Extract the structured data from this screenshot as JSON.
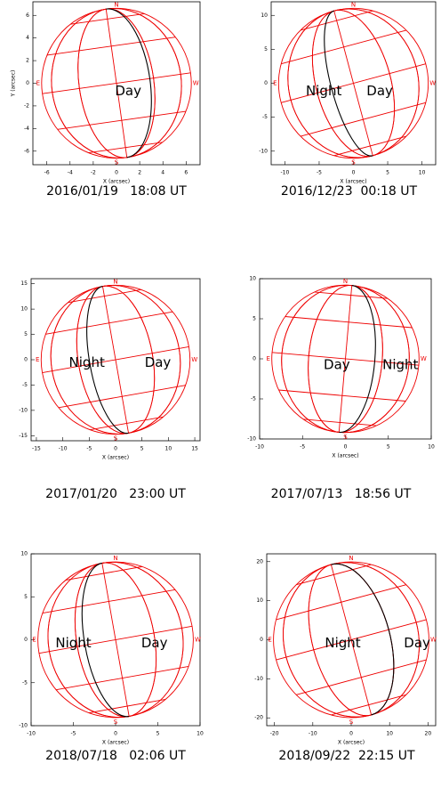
{
  "panels": [
    {
      "caption": "2016/01/19   18:08 UT",
      "xlim": [
        -7.2,
        7.2
      ],
      "xticks": [
        -6,
        -4,
        -2,
        0,
        2,
        4,
        6
      ],
      "ylim": [
        -7.2,
        7.2
      ],
      "yticks": [
        -6,
        -4,
        -2,
        0,
        2,
        4,
        6
      ],
      "xlabel": "X (arcsec)",
      "ylabel": "Y (arcsec)",
      "labels": [
        "Day"
      ],
      "poles": [
        "N",
        "S",
        "E",
        "W"
      ]
    },
    {
      "caption": "2016/12/23  00:18 UT",
      "xlim": [
        -12,
        12
      ],
      "xticks": [
        -10,
        -5,
        0,
        5,
        10
      ],
      "ylim": [
        -12,
        12
      ],
      "yticks": [
        -10,
        -5,
        0,
        5,
        10
      ],
      "xlabel": "X (arcsec)",
      "labels": [
        "Night",
        "Day"
      ],
      "poles": [
        "N",
        "S",
        "E",
        "W"
      ]
    },
    {
      "caption": "2017/01/20   23:00 UT",
      "xlim": [
        -16,
        16
      ],
      "xticks": [
        -15,
        -10,
        -5,
        0,
        5,
        10,
        15
      ],
      "ylim": [
        -16,
        16
      ],
      "yticks": [
        -15,
        -10,
        -5,
        0,
        5,
        10,
        15
      ],
      "xlabel": "X (arcsec)",
      "labels": [
        "Night",
        "Day"
      ],
      "poles": [
        "N",
        "S",
        "E",
        "W"
      ]
    },
    {
      "caption": "2017/07/13   18:56 UT",
      "xlim": [
        -10,
        10
      ],
      "xticks": [
        -10,
        -5,
        0,
        5,
        10
      ],
      "ylim": [
        -10,
        10
      ],
      "yticks": [
        -10,
        -5,
        0,
        5,
        10
      ],
      "xlabel": "X (arcsec)",
      "labels": [
        "Day",
        "Night"
      ],
      "poles": [
        "N",
        "S",
        "E",
        "W"
      ]
    },
    {
      "caption": "2018/07/18   02:06 UT",
      "xlim": [
        -10,
        10
      ],
      "xticks": [
        -10,
        -5,
        0,
        5,
        10
      ],
      "ylim": [
        -10,
        10
      ],
      "yticks": [
        -10,
        -5,
        0,
        5,
        10
      ],
      "xlabel": "X (arcsec)",
      "labels": [
        "Night",
        "Day"
      ],
      "poles": [
        "N",
        "S",
        "E",
        "W"
      ]
    },
    {
      "caption": "2018/09/22  22:15 UT",
      "xlim": [
        -22,
        22
      ],
      "xticks": [
        -20,
        -10,
        0,
        10,
        20
      ],
      "ylim": [
        -22,
        22
      ],
      "yticks": [
        -20,
        -10,
        0,
        10,
        20
      ],
      "xlabel": "X (arcsec)",
      "labels": [
        "Night",
        "Day"
      ],
      "poles": [
        "N",
        "S",
        "E",
        "W"
      ]
    }
  ]
}
